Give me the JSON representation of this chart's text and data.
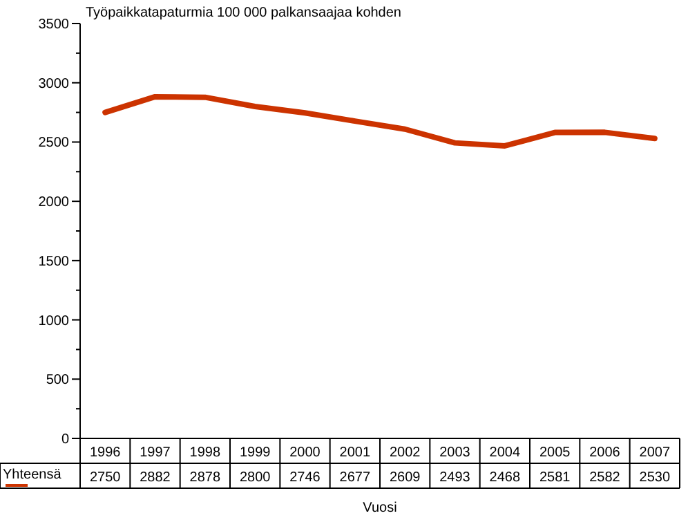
{
  "chart_data": {
    "type": "line",
    "title": "Työpaikkatapaturmia 100 000 palkansaajaa kohden",
    "xlabel": "Vuosi",
    "categories": [
      "1996",
      "1997",
      "1998",
      "1999",
      "2000",
      "2001",
      "2002",
      "2003",
      "2004",
      "2005",
      "2006",
      "2007"
    ],
    "series": [
      {
        "name": "Yhteensä",
        "color": "#cc3300",
        "values": [
          2750,
          2882,
          2878,
          2800,
          2746,
          2677,
          2609,
          2493,
          2468,
          2581,
          2582,
          2530
        ]
      }
    ],
    "ylim": [
      0,
      3500
    ],
    "yticks": [
      0,
      {
        "value": 250,
        "label": null
      },
      500,
      {
        "value": 750,
        "label": null
      },
      1000,
      {
        "value": 1250,
        "label": null
      },
      1500,
      {
        "value": 1750,
        "label": null
      },
      2000,
      {
        "value": 2250,
        "label": null
      },
      2500,
      {
        "value": 2750,
        "label": null
      },
      3000,
      {
        "value": 3250,
        "label": null
      },
      3500
    ],
    "data_labels": true,
    "grid": false,
    "marker": "none",
    "line_style": "solid"
  }
}
